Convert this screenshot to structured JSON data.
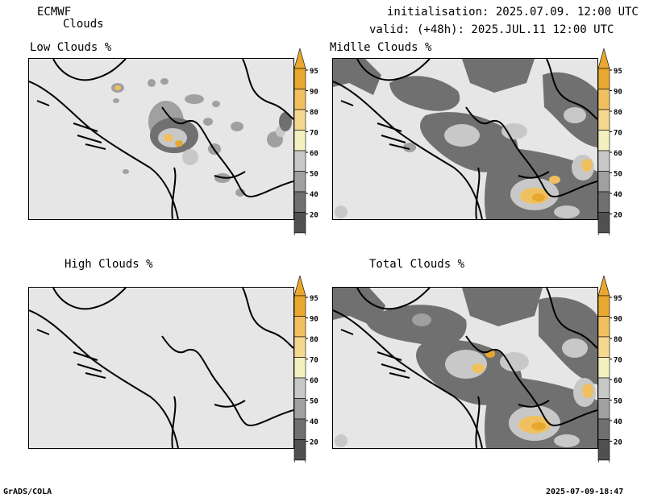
{
  "header": {
    "model": "ECMWF",
    "field": "Clouds",
    "init": "initialisation: 2025.07.09. 12:00 UTC",
    "valid": "valid: (+48h): 2025.JUL.11 12:00 UTC"
  },
  "panels": [
    {
      "id": "low",
      "title": "Low Clouds %"
    },
    {
      "id": "middle",
      "title": "Midlle Clouds %"
    },
    {
      "id": "high",
      "title": "High Clouds %"
    },
    {
      "id": "total",
      "title": "Total Clouds %"
    }
  ],
  "colorbar": {
    "levels": [
      "95",
      "90",
      "80",
      "70",
      "60",
      "50",
      "40",
      "20"
    ],
    "colors": {
      "c95": "#e8a830",
      "c90": "#f0c060",
      "c80": "#f5d890",
      "c70": "#f5f0c0",
      "c60": "#c8c8c8",
      "c50": "#a0a0a0",
      "c40": "#707070",
      "c20": "#505050"
    }
  },
  "footer": {
    "left": "GrADS/COLA",
    "right": "2025-07-09-18:47"
  }
}
